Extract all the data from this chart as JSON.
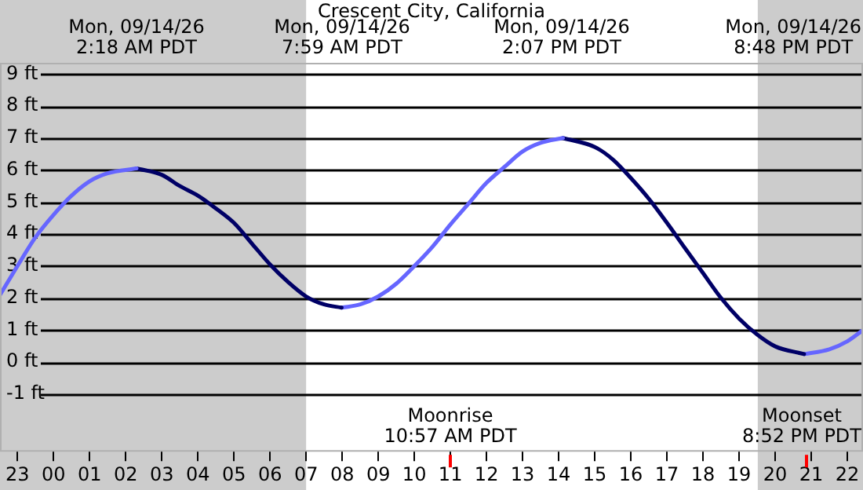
{
  "chart_data": {
    "type": "line",
    "title": "Crescent City, California",
    "series": [
      {
        "color": "#6666ff",
        "x": [
          "--09-13T22:31",
          "--09-13T23:00",
          "--09-13T23:30",
          "--09-14T00:00",
          "--09-14T00:30",
          "--09-14T01:00",
          "--09-14T01:30",
          "--09-14T02:18"
        ],
        "values": [
          2.1,
          3.0,
          3.9,
          4.6,
          5.2,
          5.65,
          5.9,
          6.05
        ]
      },
      {
        "color": "#000066",
        "x": [
          "--09-14T02:18",
          "--09-14T03:00",
          "--09-14T03:30",
          "--09-14T04:00",
          "--09-14T04:30",
          "--09-14T05:00",
          "--09-14T05:30",
          "--09-14T06:00",
          "--09-14T06:30",
          "--09-14T07:00",
          "--09-14T07:30",
          "--09-14T07:59"
        ],
        "values": [
          6.05,
          5.85,
          5.5,
          5.2,
          4.8,
          4.35,
          3.7,
          3.05,
          2.5,
          2.05,
          1.8,
          1.7
        ]
      },
      {
        "color": "#6666ff",
        "x": [
          "--09-14T07:59",
          "--09-14T08:30",
          "--09-14T09:00",
          "--09-14T09:30",
          "--09-14T10:00",
          "--09-14T10:30",
          "--09-14T11:00",
          "--09-14T11:30",
          "--09-14T12:00",
          "--09-14T12:30",
          "--09-14T13:00",
          "--09-14T13:30",
          "--09-14T14:07"
        ],
        "values": [
          1.7,
          1.8,
          2.05,
          2.45,
          3.0,
          3.6,
          4.3,
          4.95,
          5.6,
          6.1,
          6.58,
          6.85,
          7.0
        ]
      },
      {
        "color": "#000066",
        "x": [
          "--09-14T14:07",
          "--09-14T15:00",
          "--09-14T15:30",
          "--09-14T16:00",
          "--09-14T16:30",
          "--09-14T17:00",
          "--09-14T17:30",
          "--09-14T18:00",
          "--09-14T18:30",
          "--09-14T19:00",
          "--09-14T19:30",
          "--09-14T20:00",
          "--09-14T20:48"
        ],
        "values": [
          7.0,
          6.72,
          6.33,
          5.75,
          5.1,
          4.35,
          3.56,
          2.78,
          2.0,
          1.36,
          0.86,
          0.49,
          0.25
        ]
      },
      {
        "color": "#6666ff",
        "x": [
          "--09-14T20:48",
          "--09-14T21:30",
          "--09-14T22:00",
          "--09-14T22:26"
        ],
        "values": [
          0.25,
          0.4,
          0.65,
          1.0
        ]
      }
    ],
    "xlim": [
      "--09-13T22:31",
      "--09-14T22:26"
    ],
    "xticks": [
      {
        "value": "--09-13T23:00",
        "label": "23"
      },
      {
        "value": "--09-14T00:00",
        "label": "00"
      },
      {
        "value": "--09-14T01:00",
        "label": "01"
      },
      {
        "value": "--09-14T02:00",
        "label": "02"
      },
      {
        "value": "--09-14T03:00",
        "label": "03"
      },
      {
        "value": "--09-14T04:00",
        "label": "04"
      },
      {
        "value": "--09-14T05:00",
        "label": "05"
      },
      {
        "value": "--09-14T06:00",
        "label": "06"
      },
      {
        "value": "--09-14T07:00",
        "label": "07"
      },
      {
        "value": "--09-14T08:00",
        "label": "08"
      },
      {
        "value": "--09-14T09:00",
        "label": "09"
      },
      {
        "value": "--09-14T10:00",
        "label": "10"
      },
      {
        "value": "--09-14T11:00",
        "label": "11"
      },
      {
        "value": "--09-14T12:00",
        "label": "12"
      },
      {
        "value": "--09-14T13:00",
        "label": "13"
      },
      {
        "value": "--09-14T14:00",
        "label": "14"
      },
      {
        "value": "--09-14T15:00",
        "label": "15"
      },
      {
        "value": "--09-14T16:00",
        "label": "16"
      },
      {
        "value": "--09-14T17:00",
        "label": "17"
      },
      {
        "value": "--09-14T18:00",
        "label": "18"
      },
      {
        "value": "--09-14T19:00",
        "label": "19"
      },
      {
        "value": "--09-14T20:00",
        "label": "20"
      },
      {
        "value": "--09-14T21:00",
        "label": "21"
      },
      {
        "value": "--09-14T22:00",
        "label": "22"
      }
    ],
    "ylim": [
      -2.8,
      9.35
    ],
    "yticks": [
      {
        "value": -1,
        "label": "-1 ft"
      },
      {
        "value": 0,
        "label": "0 ft"
      },
      {
        "value": 1,
        "label": "1 ft"
      },
      {
        "value": 2,
        "label": "2 ft"
      },
      {
        "value": 3,
        "label": "3 ft"
      },
      {
        "value": 4,
        "label": "4 ft"
      },
      {
        "value": 5,
        "label": "5 ft"
      },
      {
        "value": 6,
        "label": "6 ft"
      },
      {
        "value": 7,
        "label": "7 ft"
      },
      {
        "value": 8,
        "label": "8 ft"
      },
      {
        "value": 9,
        "label": "9 ft"
      }
    ],
    "grid": "y",
    "bands": [
      {
        "axis": "x",
        "from": "--09-13T22:31",
        "to": "--09-14T07:00",
        "color": "#cccccc"
      },
      {
        "axis": "x",
        "from": "--09-14T19:31",
        "to": "--09-14T22:26",
        "color": "#cccccc"
      }
    ],
    "annotations": [
      "Mon, 09/14/26\n2:18 AM PDT",
      "Mon, 09/14/26\n7:59 AM PDT",
      "Mon, 09/14/26\n2:07 PM PDT",
      "Mon, 09/14/26\n8:48 PM PDT",
      "Moonrise\n10:57 AM PDT",
      "Moonset\n8:52 PM PDT"
    ]
  }
}
